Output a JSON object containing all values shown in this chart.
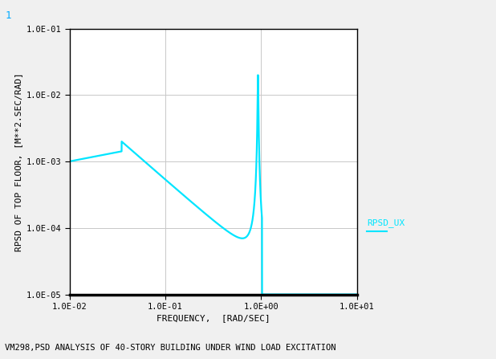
{
  "background_color": "#f0f0f0",
  "plot_bg_color": "#ffffff",
  "line_color": "#00e5ff",
  "line_width": 1.6,
  "xlabel": "FREQUENCY,  [RAD/SEC]",
  "ylabel": "RPSD OF TOP FLOOR, [M**2.SEC/RAD]",
  "legend_label": "RPSD_UX",
  "legend_color": "#00e5ff",
  "subtitle": "VM298,PSD ANALYSIS OF 40-STORY BUILDING UNDER WIND LOAD EXCITATION",
  "corner_label": "1",
  "grid_color": "#c8c8c8",
  "font_name": "monospace",
  "tick_fontsize": 7.5,
  "label_fontsize": 8,
  "subtitle_fontsize": 7.5
}
